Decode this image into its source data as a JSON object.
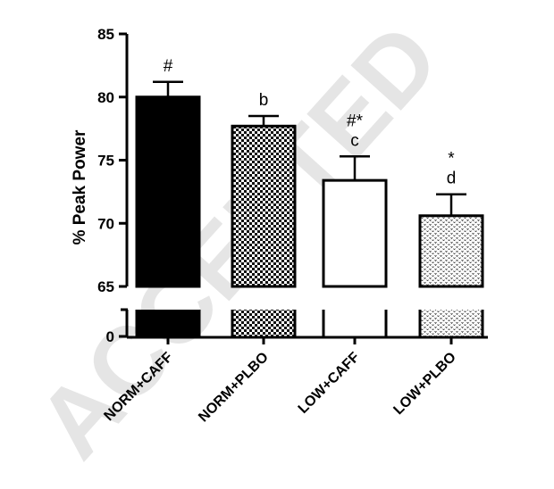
{
  "watermark": "ACCEPTED",
  "chart_data": {
    "type": "bar",
    "ylabel": "% Peak Power",
    "xlabel": "",
    "title": "",
    "ylim": [
      65,
      85
    ],
    "broken_axis": true,
    "yticks": [
      85,
      80,
      75,
      70,
      65
    ],
    "ytick_labels": [
      "85",
      "80",
      "75",
      "70",
      "65"
    ],
    "lower_tick_label": "0",
    "categories": [
      "NORM+CAFF",
      "NORM+PLBO",
      "LOW+CAFF",
      "LOW+PLBO"
    ],
    "values": [
      80.0,
      77.7,
      73.4,
      70.6
    ],
    "errors": [
      1.2,
      0.8,
      1.9,
      1.7
    ],
    "annotations": [
      {
        "top": "",
        "label": "#"
      },
      {
        "top": "",
        "label": "b"
      },
      {
        "top": "#*",
        "label": "c"
      },
      {
        "top": "*",
        "label": "d"
      }
    ],
    "fills": [
      "solid-black",
      "checker",
      "white",
      "dotted"
    ]
  }
}
